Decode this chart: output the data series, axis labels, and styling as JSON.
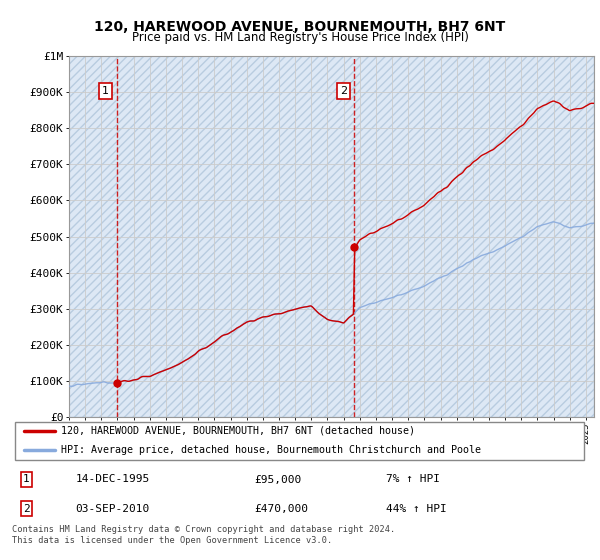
{
  "title": "120, HAREWOOD AVENUE, BOURNEMOUTH, BH7 6NT",
  "subtitle": "Price paid vs. HM Land Registry's House Price Index (HPI)",
  "ylim": [
    0,
    1000000
  ],
  "yticks": [
    0,
    100000,
    200000,
    300000,
    400000,
    500000,
    600000,
    700000,
    800000,
    900000,
    1000000
  ],
  "ytick_labels": [
    "£0",
    "£100K",
    "£200K",
    "£300K",
    "£400K",
    "£500K",
    "£600K",
    "£700K",
    "£800K",
    "£900K",
    "£1M"
  ],
  "sale1_year": 1995.96,
  "sale1_price": 95000,
  "sale1_label": "1",
  "sale1_date": "14-DEC-1995",
  "sale1_hpi": "7% ↑ HPI",
  "sale2_year": 2010.67,
  "sale2_price": 470000,
  "sale2_label": "2",
  "sale2_date": "03-SEP-2010",
  "sale2_hpi": "44% ↑ HPI",
  "property_line_color": "#cc0000",
  "hpi_line_color": "#88aadd",
  "grid_color": "#cccccc",
  "bg_color": "#dde8f5",
  "legend_label_property": "120, HAREWOOD AVENUE, BOURNEMOUTH, BH7 6NT (detached house)",
  "legend_label_hpi": "HPI: Average price, detached house, Bournemouth Christchurch and Poole",
  "footer": "Contains HM Land Registry data © Crown copyright and database right 2024.\nThis data is licensed under the Open Government Licence v3.0.",
  "marker_color": "#cc0000",
  "vline_color": "#cc0000"
}
